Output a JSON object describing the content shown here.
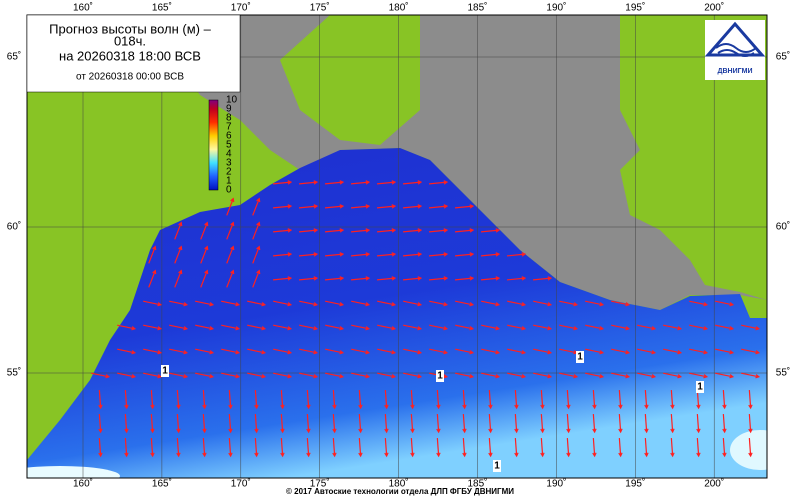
{
  "header": {
    "title_line1": "Прогноз высоты волн (м) –",
    "title_line2": "018ч.",
    "valid_time": "на 20260318 18:00 ВСВ",
    "issued": "от 20260318 00:00 ВСВ"
  },
  "scale": {
    "labels": [
      "0",
      "1",
      "2",
      "3",
      "4",
      "5",
      "6",
      "7",
      "8",
      "9",
      "10"
    ]
  },
  "map": {
    "lon_labels": [
      "160˚",
      "165˚",
      "170˚",
      "175˚",
      "180˚",
      "185˚",
      "190˚",
      "195˚",
      "200˚"
    ],
    "lat_labels": [
      "65˚",
      "60˚",
      "55˚"
    ],
    "contour_labels": [
      "1",
      "1",
      "1",
      "1",
      "1"
    ]
  },
  "logo": {
    "text": "ДВНИГМИ"
  },
  "footer": "© 2017 Автоские технологии отдела ДЛП ФГБУ ДВНИГМИ"
}
